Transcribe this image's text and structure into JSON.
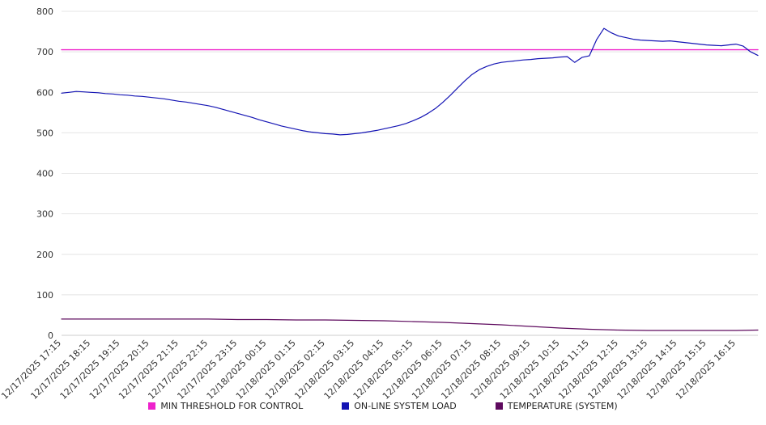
{
  "chart_data": {
    "type": "line",
    "title": "",
    "xlabel": "",
    "ylabel": "",
    "grid": true,
    "legend_position": "bottom",
    "ylim": [
      0,
      800
    ],
    "yticks": [
      0,
      100,
      200,
      300,
      400,
      500,
      600,
      700,
      800
    ],
    "x_domain": [
      0,
      23.75
    ],
    "x_labels": [
      "12/17/2025 17:15",
      "12/17/2025 18:15",
      "12/17/2025 19:15",
      "12/17/2025 20:15",
      "12/17/2025 21:15",
      "12/17/2025 22:15",
      "12/17/2025 23:15",
      "12/18/2025 00:15",
      "12/18/2025 01:15",
      "12/18/2025 02:15",
      "12/18/2025 03:15",
      "12/18/2025 04:15",
      "12/18/2025 05:15",
      "12/18/2025 06:15",
      "12/18/2025 07:15",
      "12/18/2025 08:15",
      "12/18/2025 09:15",
      "12/18/2025 10:15",
      "12/18/2025 11:15",
      "12/18/2025 12:15",
      "12/18/2025 13:15",
      "12/18/2025 14:15",
      "12/18/2025 15:15",
      "12/18/2025 16:15"
    ],
    "series": [
      {
        "id": "min-threshold",
        "name": "MIN THRESHOLD FOR CONTROL",
        "color": "#ee22cc",
        "type": "hline",
        "value": 705,
        "width": 1.4
      },
      {
        "id": "online-system-load",
        "name": "ON-LINE SYSTEM LOAD",
        "color": "#1414b4",
        "t_start": 0,
        "t_step": 0.25,
        "width": 1.2,
        "values": [
          598,
          600,
          602,
          601,
          600,
          599,
          597,
          596,
          594,
          593,
          591,
          590,
          588,
          586,
          584,
          581,
          578,
          576,
          573,
          570,
          567,
          563,
          558,
          553,
          548,
          543,
          538,
          532,
          527,
          522,
          517,
          513,
          509,
          505,
          502,
          500,
          498,
          497,
          495,
          496,
          498,
          500,
          503,
          506,
          510,
          514,
          518,
          523,
          530,
          538,
          548,
          560,
          575,
          592,
          610,
          628,
          644,
          656,
          664,
          670,
          674,
          676,
          678,
          680,
          681,
          683,
          684,
          685,
          687,
          688,
          674,
          686,
          690,
          730,
          758,
          747,
          739,
          735,
          731,
          729,
          728,
          727,
          726,
          727,
          725,
          723,
          721,
          719,
          717,
          716,
          715,
          717,
          719,
          714,
          700,
          691
        ]
      },
      {
        "id": "temperature-system",
        "name": "TEMPERATURE (SYSTEM)",
        "color": "#5e0a5e",
        "width": 1.2,
        "points": [
          [
            0,
            40
          ],
          [
            1,
            40
          ],
          [
            2,
            40
          ],
          [
            3,
            40
          ],
          [
            4,
            40
          ],
          [
            5,
            40
          ],
          [
            6,
            39
          ],
          [
            7,
            39
          ],
          [
            8,
            38
          ],
          [
            9,
            38
          ],
          [
            10,
            37
          ],
          [
            11,
            36
          ],
          [
            12,
            34
          ],
          [
            13,
            32
          ],
          [
            14,
            29
          ],
          [
            15,
            26
          ],
          [
            16,
            22
          ],
          [
            17,
            18
          ],
          [
            18,
            15
          ],
          [
            19,
            13
          ],
          [
            20,
            12
          ],
          [
            21,
            12
          ],
          [
            22,
            12
          ],
          [
            23,
            12
          ],
          [
            23.75,
            13
          ]
        ]
      }
    ]
  }
}
